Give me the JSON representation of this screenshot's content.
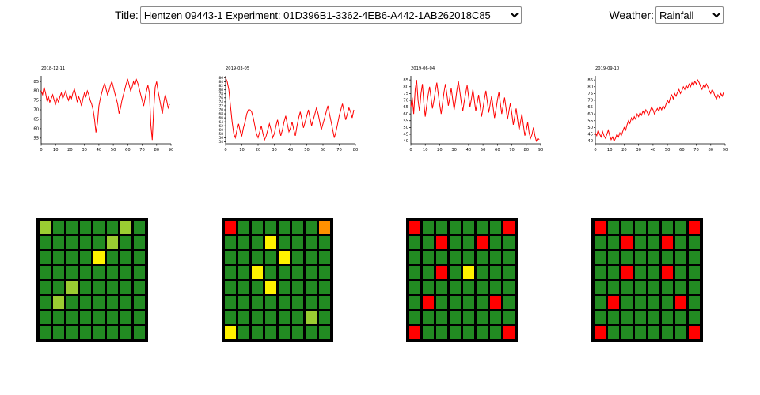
{
  "header": {
    "title_label": "Title:",
    "title_select": {
      "selected": "Hentzen 09443-1 Experiment: 01D396B1-3362-4EB6-A442-1AB262018C85"
    },
    "weather_label": "Weather:",
    "weather_select": {
      "selected": "Rainfall"
    }
  },
  "chart_data": [
    {
      "type": "line",
      "title": "2018-12-11",
      "color": "#ff0000",
      "ylim": [
        52,
        88
      ],
      "yticks": [
        55,
        60,
        65,
        70,
        75,
        80,
        85
      ],
      "xticks": [
        0,
        10,
        20,
        30,
        40,
        50,
        60,
        70,
        80,
        90
      ],
      "values": [
        80,
        78,
        82,
        79,
        75,
        77,
        74,
        76,
        78,
        75,
        73,
        76,
        74,
        77,
        79,
        76,
        78,
        80,
        77,
        75,
        78,
        76,
        79,
        81,
        78,
        74,
        77,
        75,
        72,
        76,
        79,
        77,
        80,
        78,
        75,
        73,
        70,
        65,
        58,
        63,
        72,
        76,
        79,
        82,
        84,
        81,
        78,
        80,
        83,
        85,
        82,
        79,
        76,
        73,
        68,
        71,
        75,
        78,
        81,
        84,
        86,
        83,
        80,
        82,
        85,
        83,
        86,
        84,
        81,
        78,
        75,
        72,
        76,
        80,
        83,
        79,
        62,
        54,
        70,
        82,
        85,
        80,
        76,
        72,
        68,
        74,
        78,
        75,
        71,
        73
      ]
    },
    {
      "type": "line",
      "title": "2019-03-05",
      "color": "#ff0000",
      "ylim": [
        53,
        87
      ],
      "yticks": [
        54,
        56,
        58,
        60,
        62,
        64,
        66,
        68,
        70,
        72,
        74,
        76,
        78,
        80,
        82,
        84,
        86
      ],
      "xticks": [
        0,
        10,
        20,
        30,
        40,
        50,
        60,
        70,
        80
      ],
      "values": [
        86,
        84,
        80,
        72,
        64,
        58,
        56,
        60,
        63,
        59,
        57,
        61,
        64,
        68,
        70,
        70,
        69,
        66,
        62,
        58,
        56,
        59,
        62,
        58,
        55,
        57,
        60,
        63,
        60,
        56,
        58,
        62,
        65,
        61,
        57,
        60,
        64,
        67,
        63,
        59,
        61,
        64,
        60,
        57,
        62,
        66,
        69,
        65,
        61,
        64,
        67,
        70,
        66,
        62,
        65,
        68,
        71,
        68,
        64,
        60,
        63,
        66,
        69,
        72,
        68,
        64,
        60,
        56,
        59,
        63,
        67,
        70,
        73,
        69,
        65,
        68,
        71,
        69,
        66,
        70
      ]
    },
    {
      "type": "line",
      "title": "2019-06-04",
      "color": "#ff0000",
      "ylim": [
        38,
        88
      ],
      "yticks": [
        40,
        45,
        50,
        55,
        60,
        65,
        70,
        75,
        80,
        85
      ],
      "xticks": [
        0,
        10,
        20,
        30,
        40,
        50,
        60,
        70,
        80,
        90
      ],
      "values": [
        65,
        72,
        60,
        78,
        85,
        70,
        62,
        75,
        82,
        68,
        58,
        66,
        74,
        80,
        72,
        64,
        70,
        77,
        83,
        75,
        67,
        60,
        68,
        76,
        82,
        74,
        66,
        72,
        79,
        71,
        63,
        70,
        78,
        84,
        76,
        68,
        62,
        69,
        75,
        81,
        73,
        65,
        71,
        78,
        70,
        62,
        68,
        74,
        66,
        58,
        64,
        71,
        77,
        69,
        61,
        67,
        73,
        65,
        57,
        63,
        70,
        76,
        68,
        60,
        66,
        72,
        64,
        56,
        62,
        68,
        60,
        52,
        58,
        64,
        56,
        48,
        54,
        60,
        52,
        44,
        48,
        54,
        46,
        42,
        45,
        50,
        44,
        40,
        42,
        41
      ]
    },
    {
      "type": "line",
      "title": "2019-09-10",
      "color": "#ff0000",
      "ylim": [
        38,
        88
      ],
      "yticks": [
        40,
        45,
        50,
        55,
        60,
        65,
        70,
        75,
        80,
        85
      ],
      "xticks": [
        0,
        10,
        20,
        30,
        40,
        50,
        60,
        70,
        80,
        90
      ],
      "values": [
        46,
        44,
        48,
        45,
        43,
        47,
        44,
        42,
        45,
        48,
        44,
        41,
        43,
        40,
        42,
        45,
        43,
        46,
        44,
        47,
        50,
        48,
        52,
        55,
        53,
        57,
        55,
        58,
        56,
        60,
        58,
        61,
        59,
        62,
        60,
        63,
        61,
        59,
        62,
        65,
        63,
        60,
        62,
        64,
        62,
        65,
        63,
        66,
        64,
        67,
        70,
        68,
        72,
        74,
        71,
        75,
        73,
        76,
        78,
        75,
        77,
        80,
        78,
        81,
        79,
        82,
        80,
        83,
        81,
        84,
        82,
        85,
        83,
        80,
        78,
        81,
        79,
        82,
        80,
        77,
        75,
        78,
        76,
        73,
        71,
        74,
        72,
        75,
        73,
        76
      ]
    }
  ],
  "heatmaps": {
    "palette": {
      "g": "#228B22",
      "yg": "#9ACD32",
      "y": "#FFF200",
      "o": "#FF9100",
      "r": "#FF0000"
    },
    "grids": [
      {
        "rows": [
          "yg g g g g g yg g",
          "g g g g g yg g g",
          "g g g g y g g g",
          "g g g g g g g g",
          "g g yg g g g g g",
          "g yg g g g g g g",
          "g g g g g g g g",
          "g g g g g g g g"
        ]
      },
      {
        "rows": [
          "r g g g g g g o",
          "g g g y g g g g",
          "g g g g y g g g",
          "g g y g g g g g",
          "g g g y g g g g",
          "g g g g g g g g",
          "g g g g g g yg g",
          "y g g g g g g g"
        ]
      },
      {
        "rows": [
          "r g g g g g g r",
          "g g r g g r g g",
          "g g g g g g g g",
          "g g r g y g g g",
          "g g g g g g g g",
          "g r g g g g r g",
          "g g g g g g g g",
          "r g g g g g g r"
        ]
      },
      {
        "rows": [
          "r g g g g g g r",
          "g g r g g r g g",
          "g g g g g g g g",
          "g g r g g r g g",
          "g g g g g g g g",
          "g r g g g g r g",
          "g g g g g g g g",
          "r g g g g g g r"
        ]
      }
    ]
  }
}
